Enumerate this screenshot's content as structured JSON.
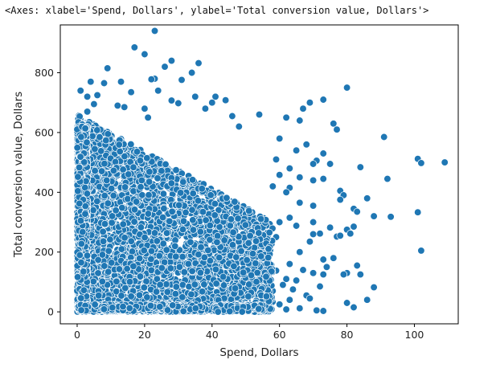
{
  "header": {
    "repr_text": "<Axes: xlabel='Spend, Dollars', ylabel='Total conversion value, Dollars'>"
  },
  "chart_data": {
    "type": "scatter",
    "title": "",
    "xlabel": "Spend, Dollars",
    "ylabel": "Total conversion value, Dollars",
    "xlim": [
      -5,
      113
    ],
    "ylim": [
      -40,
      960
    ],
    "xticks": [
      0,
      20,
      40,
      60,
      80,
      100
    ],
    "yticks": [
      0,
      200,
      400,
      600,
      800
    ],
    "grid": false,
    "legend": "none",
    "marker_color": "#1f77b4",
    "marker_edge_color": "#ffffff",
    "points": [
      [
        23,
        940
      ],
      [
        17,
        885
      ],
      [
        20,
        862
      ],
      [
        28,
        840
      ],
      [
        36,
        832
      ],
      [
        9,
        815
      ],
      [
        23,
        780
      ],
      [
        34,
        800
      ],
      [
        26,
        820
      ],
      [
        4,
        770
      ],
      [
        13,
        770
      ],
      [
        31,
        776
      ],
      [
        8,
        765
      ],
      [
        16,
        735
      ],
      [
        1,
        740
      ],
      [
        22,
        778
      ],
      [
        3,
        720
      ],
      [
        35,
        720
      ],
      [
        6,
        725
      ],
      [
        41,
        720
      ],
      [
        24,
        740
      ],
      [
        5,
        695
      ],
      [
        28,
        707
      ],
      [
        44,
        708
      ],
      [
        73,
        710
      ],
      [
        80,
        750
      ],
      [
        69,
        700
      ],
      [
        67,
        680
      ],
      [
        30,
        698
      ],
      [
        38,
        680
      ],
      [
        54,
        660
      ],
      [
        14,
        685
      ],
      [
        20,
        680
      ],
      [
        12,
        690
      ],
      [
        46,
        655
      ],
      [
        3,
        670
      ],
      [
        21,
        650
      ],
      [
        62,
        650
      ],
      [
        40,
        700
      ],
      [
        48,
        620
      ],
      [
        76,
        630
      ],
      [
        66,
        640
      ],
      [
        77,
        610
      ],
      [
        91,
        585
      ],
      [
        68,
        560
      ],
      [
        65,
        540
      ],
      [
        60,
        580
      ],
      [
        73,
        530
      ],
      [
        59,
        510
      ],
      [
        71,
        506
      ],
      [
        75,
        495
      ],
      [
        70,
        495
      ],
      [
        101,
        512
      ],
      [
        102,
        498
      ],
      [
        109,
        500
      ],
      [
        84,
        484
      ],
      [
        92,
        445
      ],
      [
        63,
        480
      ],
      [
        66,
        450
      ],
      [
        70,
        440
      ],
      [
        60,
        458
      ],
      [
        73,
        445
      ],
      [
        78,
        405
      ],
      [
        79,
        390
      ],
      [
        63,
        415
      ],
      [
        58,
        420
      ],
      [
        62,
        400
      ],
      [
        78,
        375
      ],
      [
        86,
        380
      ],
      [
        66,
        365
      ],
      [
        70,
        355
      ],
      [
        82,
        345
      ],
      [
        83,
        335
      ],
      [
        88,
        320
      ],
      [
        93,
        318
      ],
      [
        101,
        333
      ],
      [
        82,
        285
      ],
      [
        80,
        275
      ],
      [
        81,
        262
      ],
      [
        77,
        252
      ],
      [
        78,
        255
      ],
      [
        70,
        300
      ],
      [
        60,
        300
      ],
      [
        65,
        288
      ],
      [
        75,
        282
      ],
      [
        72,
        262
      ],
      [
        59,
        250
      ],
      [
        63,
        315
      ],
      [
        76,
        180
      ],
      [
        73,
        175
      ],
      [
        83,
        155
      ],
      [
        74,
        150
      ],
      [
        80,
        130
      ],
      [
        70,
        130
      ],
      [
        102,
        205
      ],
      [
        67,
        140
      ],
      [
        73,
        125
      ],
      [
        79,
        125
      ],
      [
        65,
        105
      ],
      [
        88,
        82
      ],
      [
        84,
        125
      ],
      [
        72,
        85
      ],
      [
        62,
        110
      ],
      [
        80,
        30
      ],
      [
        82,
        15
      ],
      [
        86,
        40
      ],
      [
        71,
        5
      ],
      [
        73,
        3
      ],
      [
        68,
        55
      ],
      [
        69,
        45
      ],
      [
        66,
        12
      ],
      [
        63,
        40
      ],
      [
        60,
        25
      ],
      [
        62,
        8
      ],
      [
        56,
        15
      ],
      [
        53,
        30
      ],
      [
        57,
        55
      ],
      [
        64,
        75
      ],
      [
        58,
        70
      ],
      [
        61,
        90
      ],
      [
        55,
        100
      ],
      [
        57,
        126
      ],
      [
        59,
        138
      ],
      [
        63,
        160
      ],
      [
        66,
        200
      ],
      [
        69,
        235
      ],
      [
        70,
        260
      ]
    ]
  }
}
